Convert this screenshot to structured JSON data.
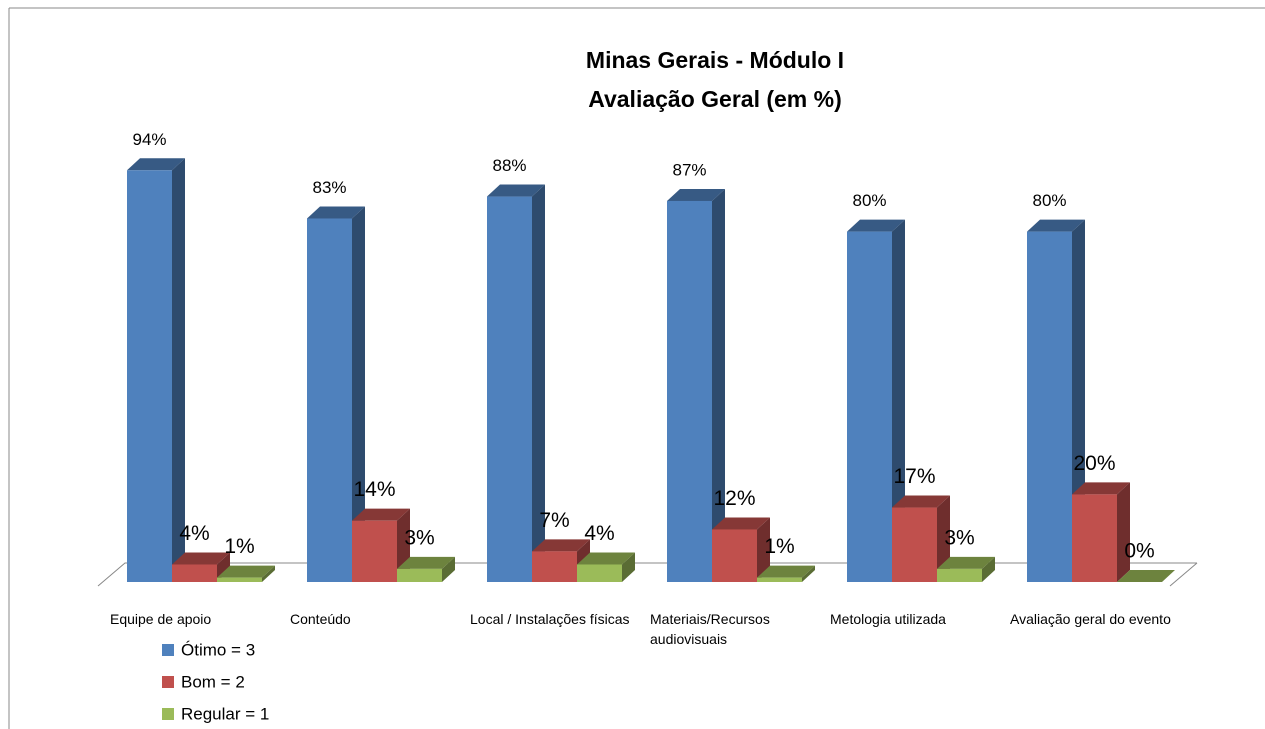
{
  "chart_data": {
    "type": "bar3d",
    "title": "Minas Gerais - Módulo I",
    "subtitle": "Avaliação Geral (em %)",
    "categories": [
      "Equipe de apoio",
      "Conteúdo",
      "Local / Instalações físicas",
      "Materiais/Recursos audiovisuais",
      "Metologia utilizada",
      "Avaliação geral do evento"
    ],
    "series": [
      {
        "name": "Ótimo = 3",
        "color": "#4f81bd",
        "values": [
          94,
          83,
          88,
          87,
          80,
          80
        ],
        "value_labels": [
          "94%",
          "83%",
          "88%",
          "87%",
          "80%",
          "80%"
        ]
      },
      {
        "name": "Bom = 2",
        "color": "#c0504d",
        "values": [
          4,
          14,
          7,
          12,
          17,
          20
        ],
        "value_labels": [
          "4%",
          "14%",
          "7%",
          "12%",
          "17%",
          "20%"
        ]
      },
      {
        "name": "Regular = 1",
        "color": "#9bbb59",
        "values": [
          1,
          3,
          4,
          1,
          3,
          0
        ],
        "value_labels": [
          "1%",
          "3%",
          "4%",
          "1%",
          "3%",
          "0%"
        ]
      }
    ]
  }
}
